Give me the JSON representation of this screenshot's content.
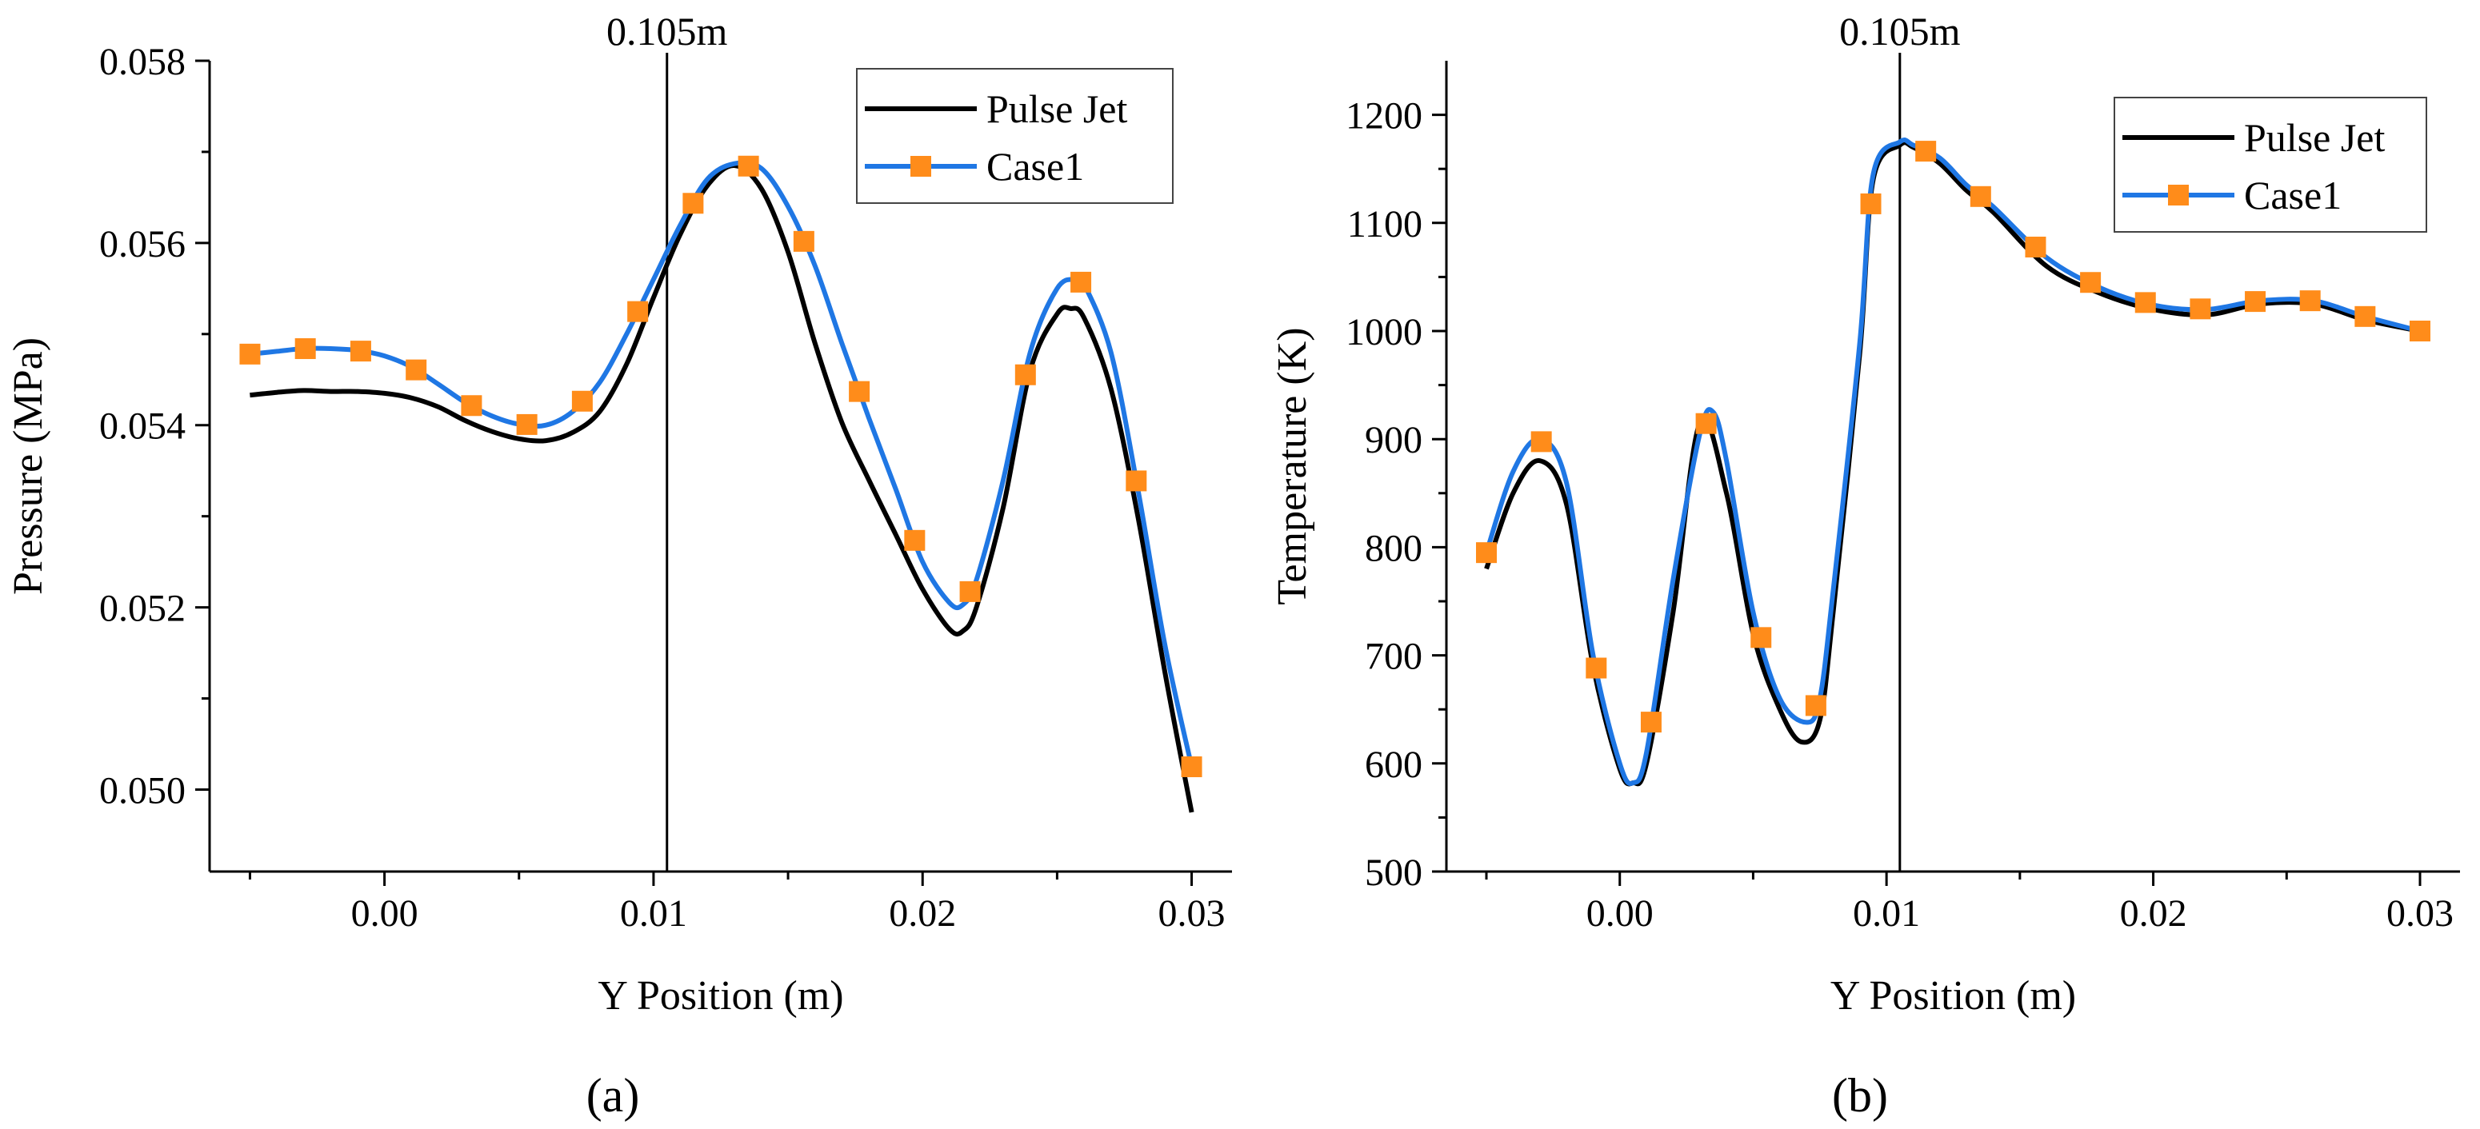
{
  "figure": {
    "panel_labels": [
      "(a)",
      "(b)"
    ]
  },
  "colors": {
    "pulse_jet": "#000000",
    "case1_line": "#1f77e4",
    "case1_marker": "#ff8c1a",
    "axis": "#000000"
  },
  "chart_data": [
    {
      "type": "line",
      "panel": "(a)",
      "title": "",
      "xlabel": "Y Position (m)",
      "ylabel": "Pressure (MPa)",
      "xlim": [
        -0.0065,
        0.0315
      ],
      "ylim": [
        0.0491,
        0.058
      ],
      "xticks": [
        0.0,
        0.01,
        0.02,
        0.03
      ],
      "xtick_labels": [
        "0.00",
        "0.01",
        "0.02",
        "0.03"
      ],
      "yticks": [
        0.05,
        0.052,
        0.054,
        0.056,
        0.058
      ],
      "ytick_labels": [
        "0.050",
        "0.052",
        "0.054",
        "0.056",
        "0.058"
      ],
      "vline": {
        "x": 0.0105,
        "label": "0.105m"
      },
      "legend": {
        "position": "top-right",
        "entries": [
          "Pulse Jet",
          "Case1"
        ]
      },
      "series": [
        {
          "name": "Pulse Jet",
          "markers": false,
          "x": [
            -0.005,
            -0.004,
            -0.003,
            -0.002,
            -0.001,
            0.0,
            0.001,
            0.002,
            0.003,
            0.004,
            0.005,
            0.006,
            0.007,
            0.008,
            0.009,
            0.01,
            0.011,
            0.012,
            0.013,
            0.014,
            0.015,
            0.016,
            0.017,
            0.018,
            0.019,
            0.02,
            0.021,
            0.0215,
            0.022,
            0.023,
            0.024,
            0.025,
            0.0255,
            0.026,
            0.027,
            0.028,
            0.029,
            0.03
          ],
          "y": [
            0.05433,
            0.05436,
            0.05438,
            0.05437,
            0.05437,
            0.05435,
            0.0543,
            0.0542,
            0.05405,
            0.05393,
            0.05385,
            0.05383,
            0.05392,
            0.05415,
            0.05467,
            0.0554,
            0.0561,
            0.05663,
            0.05685,
            0.0566,
            0.0559,
            0.0549,
            0.05403,
            0.0534,
            0.0528,
            0.0522,
            0.05176,
            0.05174,
            0.052,
            0.0531,
            0.0546,
            0.05522,
            0.05528,
            0.05518,
            0.0544,
            0.053,
            0.0513,
            0.04975
          ]
        },
        {
          "name": "Case1",
          "markers": true,
          "x": [
            -0.005,
            -0.004,
            -0.003,
            -0.002,
            -0.001,
            0.0,
            0.001,
            0.002,
            0.003,
            0.004,
            0.005,
            0.006,
            0.007,
            0.008,
            0.009,
            0.01,
            0.011,
            0.012,
            0.013,
            0.014,
            0.015,
            0.016,
            0.017,
            0.018,
            0.019,
            0.02,
            0.021,
            0.0215,
            0.022,
            0.023,
            0.024,
            0.025,
            0.0257,
            0.026,
            0.027,
            0.028,
            0.029,
            0.03
          ],
          "y": [
            0.05478,
            0.05481,
            0.05484,
            0.05484,
            0.05482,
            0.05476,
            0.05464,
            0.05445,
            0.05425,
            0.0541,
            0.05401,
            0.054,
            0.05415,
            0.05447,
            0.055,
            0.0556,
            0.0562,
            0.0567,
            0.05687,
            0.05682,
            0.0564,
            0.05575,
            0.0549,
            0.05408,
            0.0533,
            0.0525,
            0.05205,
            0.05203,
            0.0523,
            0.0534,
            0.0548,
            0.0555,
            0.0556,
            0.05555,
            0.0548,
            0.0533,
            0.0516,
            0.05025
          ]
        }
      ]
    },
    {
      "type": "line",
      "panel": "(b)",
      "title": "",
      "xlabel": "Y Position (m)",
      "ylabel": "Temperature (K)",
      "xlim": [
        -0.0065,
        0.0315
      ],
      "ylim": [
        500,
        1250
      ],
      "xticks": [
        0.0,
        0.01,
        0.02,
        0.03
      ],
      "xtick_labels": [
        "0.00",
        "0.01",
        "0.02",
        "0.03"
      ],
      "yticks": [
        500,
        600,
        700,
        800,
        900,
        1000,
        1100,
        1200
      ],
      "ytick_labels": [
        "500",
        "600",
        "700",
        "800",
        "900",
        "1000",
        "1100",
        "1200"
      ],
      "vline": {
        "x": 0.0105,
        "label": "0.105m"
      },
      "legend": {
        "position": "top-right",
        "entries": [
          "Pulse Jet",
          "Case1"
        ]
      },
      "series": [
        {
          "name": "Pulse Jet",
          "markers": false,
          "x": [
            -0.005,
            -0.004,
            -0.003,
            -0.002,
            -0.001,
            0.0,
            0.0005,
            0.001,
            0.002,
            0.003,
            0.004,
            0.005,
            0.006,
            0.0068,
            0.0075,
            0.008,
            0.009,
            0.0095,
            0.0105,
            0.011,
            0.012,
            0.013,
            0.014,
            0.016,
            0.018,
            0.02,
            0.022,
            0.024,
            0.026,
            0.028,
            0.03
          ],
          "y": [
            780,
            850,
            880,
            840,
            690,
            595,
            582,
            600,
            740,
            915,
            850,
            720,
            650,
            620,
            640,
            740,
            980,
            1140,
            1172,
            1170,
            1155,
            1130,
            1110,
            1060,
            1035,
            1020,
            1015,
            1025,
            1025,
            1010,
            1000
          ]
        },
        {
          "name": "Case1",
          "markers": true,
          "x": [
            -0.005,
            -0.004,
            -0.003,
            -0.002,
            -0.001,
            0.0,
            0.0005,
            0.001,
            0.002,
            0.003,
            0.0035,
            0.004,
            0.005,
            0.006,
            0.007,
            0.0075,
            0.008,
            0.009,
            0.0095,
            0.0105,
            0.011,
            0.012,
            0.013,
            0.014,
            0.016,
            0.018,
            0.02,
            0.022,
            0.024,
            0.026,
            0.028,
            0.03
          ],
          "y": [
            795,
            870,
            900,
            860,
            700,
            600,
            582,
            610,
            770,
            905,
            925,
            880,
            740,
            660,
            638,
            660,
            760,
            990,
            1145,
            1175,
            1172,
            1160,
            1135,
            1115,
            1068,
            1040,
            1024,
            1020,
            1028,
            1028,
            1013,
            1000
          ]
        }
      ]
    }
  ]
}
